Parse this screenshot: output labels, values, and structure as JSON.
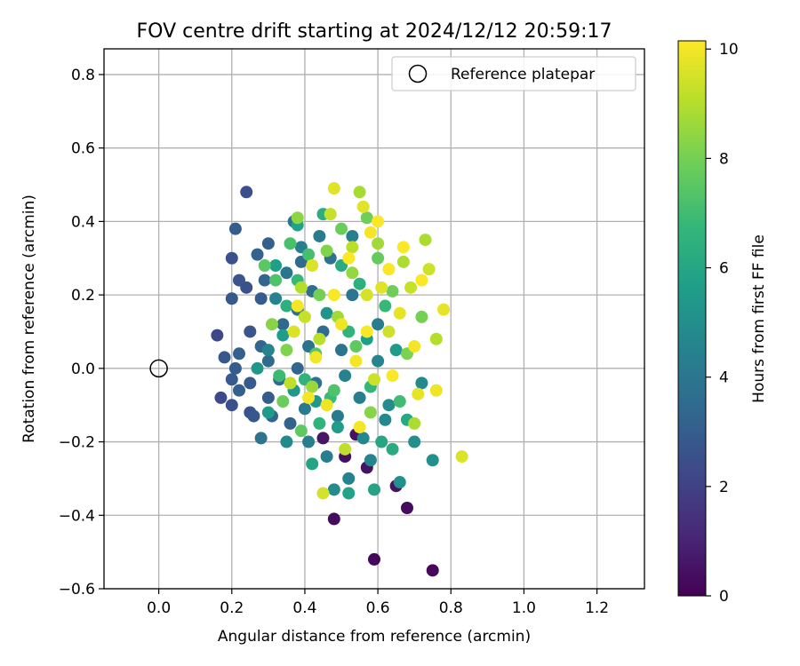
{
  "chart_data": {
    "type": "scatter",
    "title": "FOV centre drift starting at 2024/12/12 20:59:17",
    "xlabel": "Angular distance from reference (arcmin)",
    "ylabel": "Rotation from reference (arcmin)",
    "xlim": [
      -0.15,
      1.33
    ],
    "ylim": [
      -0.6,
      0.87
    ],
    "xticks": [
      0.0,
      0.2,
      0.4,
      0.6,
      0.8,
      1.0,
      1.2
    ],
    "xtick_labels": [
      "0.0",
      "0.2",
      "0.4",
      "0.6",
      "0.8",
      "1.0",
      "1.2"
    ],
    "yticks": [
      -0.6,
      -0.4,
      -0.2,
      0.0,
      0.2,
      0.4,
      0.6,
      0.8
    ],
    "ytick_labels": [
      "−0.6",
      "−0.4",
      "−0.2",
      "0.0",
      "0.2",
      "0.4",
      "0.6",
      "0.8"
    ],
    "grid": true,
    "legend": {
      "position": "top-right",
      "entries": [
        {
          "label": "Reference platepar",
          "marker": "open-circle"
        }
      ]
    },
    "reference_point": {
      "x": 0.0,
      "y": 0.0
    },
    "colorbar": {
      "label": "Hours from first FF file",
      "colormap": "viridis",
      "range": [
        0,
        10.15
      ],
      "ticks": [
        0,
        2,
        4,
        6,
        8,
        10
      ],
      "tick_labels": [
        "0",
        "2",
        "4",
        "6",
        "8",
        "10"
      ]
    },
    "colormap_stops": [
      "#440154",
      "#482878",
      "#3e4989",
      "#31688e",
      "#26828e",
      "#1f9e89",
      "#35b779",
      "#6ece58",
      "#b5de2b",
      "#fde725"
    ],
    "series": [
      {
        "color_by": "hours",
        "points": [
          {
            "x": 0.59,
            "y": -0.52,
            "h": 0.2
          },
          {
            "x": 0.75,
            "y": -0.55,
            "h": 0.2
          },
          {
            "x": 0.48,
            "y": -0.41,
            "h": 0.3
          },
          {
            "x": 0.68,
            "y": -0.38,
            "h": 0.3
          },
          {
            "x": 0.65,
            "y": -0.32,
            "h": 0.5
          },
          {
            "x": 0.51,
            "y": -0.24,
            "h": 0.4
          },
          {
            "x": 0.57,
            "y": -0.27,
            "h": 0.5
          },
          {
            "x": 0.45,
            "y": -0.19,
            "h": 0.6
          },
          {
            "x": 0.54,
            "y": -0.18,
            "h": 0.5
          },
          {
            "x": 0.16,
            "y": 0.09,
            "h": 2.2
          },
          {
            "x": 0.24,
            "y": 0.48,
            "h": 2.5
          },
          {
            "x": 0.17,
            "y": -0.08,
            "h": 2.3
          },
          {
            "x": 0.2,
            "y": -0.1,
            "h": 2.5
          },
          {
            "x": 0.2,
            "y": 0.3,
            "h": 2.6
          },
          {
            "x": 0.21,
            "y": 0.38,
            "h": 3.0
          },
          {
            "x": 0.2,
            "y": 0.19,
            "h": 2.8
          },
          {
            "x": 0.22,
            "y": 0.24,
            "h": 2.7
          },
          {
            "x": 0.24,
            "y": 0.22,
            "h": 2.6
          },
          {
            "x": 0.18,
            "y": 0.03,
            "h": 2.8
          },
          {
            "x": 0.2,
            "y": -0.03,
            "h": 2.9
          },
          {
            "x": 0.21,
            "y": 0.0,
            "h": 3.0
          },
          {
            "x": 0.22,
            "y": -0.06,
            "h": 3.1
          },
          {
            "x": 0.25,
            "y": -0.12,
            "h": 2.6
          },
          {
            "x": 0.26,
            "y": -0.13,
            "h": 2.8
          },
          {
            "x": 0.22,
            "y": 0.04,
            "h": 3.1
          },
          {
            "x": 0.25,
            "y": -0.04,
            "h": 2.9
          },
          {
            "x": 0.25,
            "y": 0.1,
            "h": 2.7
          },
          {
            "x": 0.27,
            "y": 0.31,
            "h": 3.2
          },
          {
            "x": 0.28,
            "y": 0.19,
            "h": 2.9
          },
          {
            "x": 0.29,
            "y": 0.24,
            "h": 3.3
          },
          {
            "x": 0.3,
            "y": 0.34,
            "h": 3.1
          },
          {
            "x": 0.28,
            "y": 0.06,
            "h": 3.3
          },
          {
            "x": 0.3,
            "y": 0.02,
            "h": 3.5
          },
          {
            "x": 0.3,
            "y": -0.08,
            "h": 3.0
          },
          {
            "x": 0.31,
            "y": -0.13,
            "h": 3.3
          },
          {
            "x": 0.28,
            "y": -0.19,
            "h": 3.9
          },
          {
            "x": 0.33,
            "y": -0.03,
            "h": 3.6
          },
          {
            "x": 0.34,
            "y": 0.12,
            "h": 3.4
          },
          {
            "x": 0.35,
            "y": 0.26,
            "h": 4.0
          },
          {
            "x": 0.37,
            "y": 0.4,
            "h": 3.9
          },
          {
            "x": 0.36,
            "y": -0.15,
            "h": 3.2
          },
          {
            "x": 0.37,
            "y": -0.06,
            "h": 3.7
          },
          {
            "x": 0.38,
            "y": 0.0,
            "h": 3.3
          },
          {
            "x": 0.38,
            "y": 0.16,
            "h": 3.8
          },
          {
            "x": 0.39,
            "y": 0.29,
            "h": 3.5
          },
          {
            "x": 0.4,
            "y": -0.11,
            "h": 4.1
          },
          {
            "x": 0.41,
            "y": 0.06,
            "h": 3.9
          },
          {
            "x": 0.42,
            "y": 0.21,
            "h": 3.7
          },
          {
            "x": 0.43,
            "y": -0.04,
            "h": 3.9
          },
          {
            "x": 0.45,
            "y": 0.1,
            "h": 3.6
          },
          {
            "x": 0.46,
            "y": -0.24,
            "h": 4.3
          },
          {
            "x": 0.47,
            "y": 0.3,
            "h": 3.8
          },
          {
            "x": 0.49,
            "y": -0.13,
            "h": 4.1
          },
          {
            "x": 0.5,
            "y": 0.05,
            "h": 3.9
          },
          {
            "x": 0.52,
            "y": -0.3,
            "h": 4.5
          },
          {
            "x": 0.53,
            "y": 0.2,
            "h": 4.0
          },
          {
            "x": 0.55,
            "y": -0.08,
            "h": 4.4
          },
          {
            "x": 0.58,
            "y": -0.25,
            "h": 4.6
          },
          {
            "x": 0.6,
            "y": 0.12,
            "h": 4.2
          },
          {
            "x": 0.62,
            "y": -0.14,
            "h": 4.8
          },
          {
            "x": 0.44,
            "y": 0.36,
            "h": 4.2
          },
          {
            "x": 0.41,
            "y": -0.2,
            "h": 4.4
          },
          {
            "x": 0.3,
            "y": 0.05,
            "h": 4.6
          },
          {
            "x": 0.32,
            "y": 0.19,
            "h": 4.5
          },
          {
            "x": 0.35,
            "y": -0.2,
            "h": 4.8
          },
          {
            "x": 0.39,
            "y": 0.33,
            "h": 4.3
          },
          {
            "x": 0.48,
            "y": -0.33,
            "h": 4.9
          },
          {
            "x": 0.51,
            "y": -0.02,
            "h": 4.5
          },
          {
            "x": 0.53,
            "y": 0.36,
            "h": 4.4
          },
          {
            "x": 0.56,
            "y": -0.19,
            "h": 4.7
          },
          {
            "x": 0.6,
            "y": 0.02,
            "h": 4.6
          },
          {
            "x": 0.63,
            "y": -0.1,
            "h": 4.9
          },
          {
            "x": 0.66,
            "y": -0.31,
            "h": 5.1
          },
          {
            "x": 0.7,
            "y": -0.2,
            "h": 5.0
          },
          {
            "x": 0.72,
            "y": -0.04,
            "h": 4.8
          },
          {
            "x": 0.75,
            "y": -0.25,
            "h": 5.1
          },
          {
            "x": 0.46,
            "y": 0.15,
            "h": 5.2
          },
          {
            "x": 0.43,
            "y": -0.09,
            "h": 5.3
          },
          {
            "x": 0.37,
            "y": -0.06,
            "h": 5.4
          },
          {
            "x": 0.34,
            "y": 0.09,
            "h": 5.6
          },
          {
            "x": 0.3,
            "y": -0.12,
            "h": 5.5
          },
          {
            "x": 0.27,
            "y": 0.0,
            "h": 5.3
          },
          {
            "x": 0.32,
            "y": 0.28,
            "h": 5.7
          },
          {
            "x": 0.38,
            "y": 0.39,
            "h": 5.8
          },
          {
            "x": 0.42,
            "y": -0.26,
            "h": 5.9
          },
          {
            "x": 0.49,
            "y": -0.16,
            "h": 5.6
          },
          {
            "x": 0.52,
            "y": -0.34,
            "h": 5.8
          },
          {
            "x": 0.57,
            "y": 0.08,
            "h": 5.7
          },
          {
            "x": 0.59,
            "y": -0.33,
            "h": 5.9
          },
          {
            "x": 0.61,
            "y": -0.2,
            "h": 6.0
          },
          {
            "x": 0.65,
            "y": 0.05,
            "h": 5.5
          },
          {
            "x": 0.68,
            "y": -0.14,
            "h": 6.1
          },
          {
            "x": 0.64,
            "y": -0.22,
            "h": 6.2
          },
          {
            "x": 0.45,
            "y": 0.42,
            "h": 6.3
          },
          {
            "x": 0.5,
            "y": 0.28,
            "h": 6.2
          },
          {
            "x": 0.35,
            "y": 0.17,
            "h": 6.4
          },
          {
            "x": 0.4,
            "y": -0.03,
            "h": 6.5
          },
          {
            "x": 0.44,
            "y": -0.15,
            "h": 6.6
          },
          {
            "x": 0.55,
            "y": 0.23,
            "h": 6.4
          },
          {
            "x": 0.58,
            "y": -0.05,
            "h": 6.7
          },
          {
            "x": 0.38,
            "y": 0.24,
            "h": 6.8
          },
          {
            "x": 0.33,
            "y": -0.02,
            "h": 6.9
          },
          {
            "x": 0.47,
            "y": -0.08,
            "h": 6.9
          },
          {
            "x": 0.52,
            "y": 0.1,
            "h": 6.6
          },
          {
            "x": 0.62,
            "y": 0.17,
            "h": 6.8
          },
          {
            "x": 0.66,
            "y": -0.09,
            "h": 7.0
          },
          {
            "x": 0.36,
            "y": 0.34,
            "h": 7.2
          },
          {
            "x": 0.41,
            "y": 0.31,
            "h": 7.1
          },
          {
            "x": 0.32,
            "y": 0.24,
            "h": 7.3
          },
          {
            "x": 0.29,
            "y": 0.28,
            "h": 7.5
          },
          {
            "x": 0.43,
            "y": 0.04,
            "h": 7.4
          },
          {
            "x": 0.48,
            "y": -0.06,
            "h": 7.3
          },
          {
            "x": 0.54,
            "y": 0.06,
            "h": 7.6
          },
          {
            "x": 0.6,
            "y": 0.3,
            "h": 7.7
          },
          {
            "x": 0.39,
            "y": -0.17,
            "h": 7.6
          },
          {
            "x": 0.34,
            "y": -0.09,
            "h": 7.8
          },
          {
            "x": 0.57,
            "y": 0.41,
            "h": 7.9
          },
          {
            "x": 0.5,
            "y": 0.38,
            "h": 7.8
          },
          {
            "x": 0.44,
            "y": 0.2,
            "h": 8.0
          },
          {
            "x": 0.64,
            "y": 0.21,
            "h": 7.9
          },
          {
            "x": 0.68,
            "y": 0.04,
            "h": 8.1
          },
          {
            "x": 0.72,
            "y": 0.14,
            "h": 8.0
          },
          {
            "x": 0.35,
            "y": 0.05,
            "h": 8.2
          },
          {
            "x": 0.31,
            "y": 0.12,
            "h": 8.3
          },
          {
            "x": 0.38,
            "y": 0.41,
            "h": 8.4
          },
          {
            "x": 0.46,
            "y": 0.32,
            "h": 8.2
          },
          {
            "x": 0.53,
            "y": 0.26,
            "h": 8.5
          },
          {
            "x": 0.58,
            "y": -0.12,
            "h": 8.3
          },
          {
            "x": 0.42,
            "y": -0.05,
            "h": 8.6
          },
          {
            "x": 0.49,
            "y": 0.14,
            "h": 8.7
          },
          {
            "x": 0.55,
            "y": 0.48,
            "h": 8.8
          },
          {
            "x": 0.6,
            "y": 0.34,
            "h": 8.7
          },
          {
            "x": 0.67,
            "y": 0.29,
            "h": 8.9
          },
          {
            "x": 0.73,
            "y": 0.35,
            "h": 8.9
          },
          {
            "x": 0.76,
            "y": 0.08,
            "h": 9.0
          },
          {
            "x": 0.7,
            "y": -0.15,
            "h": 8.9
          },
          {
            "x": 0.39,
            "y": 0.22,
            "h": 9.0
          },
          {
            "x": 0.44,
            "y": 0.08,
            "h": 9.1
          },
          {
            "x": 0.51,
            "y": -0.22,
            "h": 9.2
          },
          {
            "x": 0.53,
            "y": 0.33,
            "h": 9.1
          },
          {
            "x": 0.36,
            "y": -0.04,
            "h": 9.2
          },
          {
            "x": 0.47,
            "y": 0.42,
            "h": 9.3
          },
          {
            "x": 0.4,
            "y": 0.14,
            "h": 9.3
          },
          {
            "x": 0.63,
            "y": 0.1,
            "h": 9.4
          },
          {
            "x": 0.69,
            "y": 0.22,
            "h": 9.3
          },
          {
            "x": 0.74,
            "y": 0.27,
            "h": 9.4
          },
          {
            "x": 0.57,
            "y": 0.2,
            "h": 9.5
          },
          {
            "x": 0.59,
            "y": -0.03,
            "h": 9.4
          },
          {
            "x": 0.45,
            "y": -0.34,
            "h": 9.5
          },
          {
            "x": 0.83,
            "y": -0.24,
            "h": 9.6
          },
          {
            "x": 0.37,
            "y": 0.1,
            "h": 9.6
          },
          {
            "x": 0.42,
            "y": 0.28,
            "h": 9.6
          },
          {
            "x": 0.48,
            "y": 0.49,
            "h": 9.7
          },
          {
            "x": 0.56,
            "y": 0.44,
            "h": 9.7
          },
          {
            "x": 0.61,
            "y": 0.22,
            "h": 9.7
          },
          {
            "x": 0.66,
            "y": 0.15,
            "h": 9.8
          },
          {
            "x": 0.71,
            "y": -0.07,
            "h": 9.8
          },
          {
            "x": 0.76,
            "y": -0.06,
            "h": 9.9
          },
          {
            "x": 0.78,
            "y": 0.16,
            "h": 9.8
          },
          {
            "x": 0.5,
            "y": 0.12,
            "h": 9.9
          },
          {
            "x": 0.46,
            "y": -0.1,
            "h": 9.9
          },
          {
            "x": 0.54,
            "y": 0.02,
            "h": 10.0
          },
          {
            "x": 0.43,
            "y": 0.03,
            "h": 10.0
          },
          {
            "x": 0.38,
            "y": 0.17,
            "h": 10.0
          },
          {
            "x": 0.52,
            "y": 0.3,
            "h": 10.1
          },
          {
            "x": 0.58,
            "y": 0.37,
            "h": 10.0
          },
          {
            "x": 0.63,
            "y": 0.27,
            "h": 10.1
          },
          {
            "x": 0.67,
            "y": 0.33,
            "h": 10.1
          },
          {
            "x": 0.72,
            "y": 0.24,
            "h": 10.1
          },
          {
            "x": 0.6,
            "y": 0.4,
            "h": 10.1
          },
          {
            "x": 0.55,
            "y": -0.16,
            "h": 10.0
          },
          {
            "x": 0.64,
            "y": -0.02,
            "h": 10.1
          },
          {
            "x": 0.7,
            "y": 0.06,
            "h": 10.0
          },
          {
            "x": 0.48,
            "y": 0.2,
            "h": 10.1
          },
          {
            "x": 0.41,
            "y": -0.08,
            "h": 10.0
          },
          {
            "x": 0.57,
            "y": 0.1,
            "h": 10.1
          }
        ]
      }
    ]
  }
}
